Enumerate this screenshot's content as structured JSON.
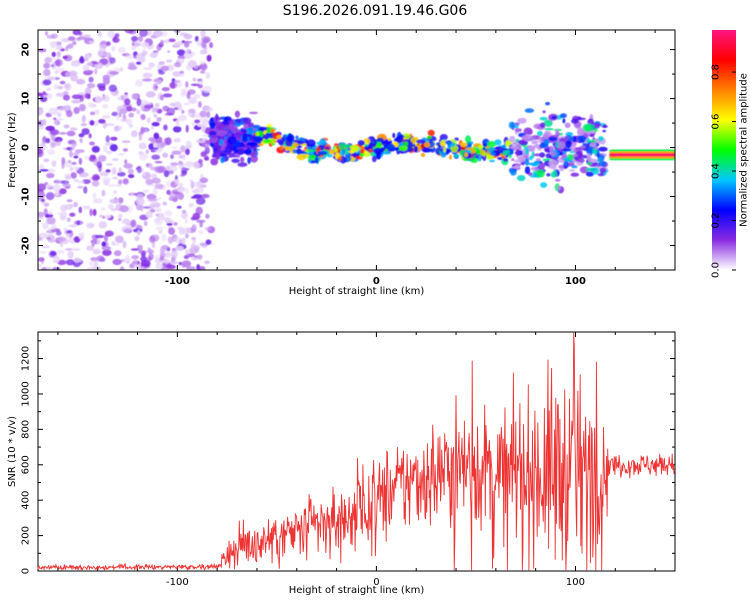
{
  "title": "S196.2026.091.19.46.G06",
  "chart_data": [
    {
      "type": "heatmap",
      "title": "S196.2026.091.19.46.G06",
      "xlabel": "Height of straight line (km)",
      "ylabel": "Frequency (Hz)",
      "xlim": [
        -170,
        150
      ],
      "ylim": [
        -25,
        24
      ],
      "xticks": [
        -100,
        0,
        100
      ],
      "yticks": [
        -20,
        -10,
        0,
        10,
        20
      ],
      "grid": false,
      "colorbar": {
        "label": "Normalized spectral amplitude",
        "range": [
          0,
          0.97
        ],
        "ticks": [
          0.0,
          0.2,
          0.4,
          0.6,
          0.8
        ],
        "tick_labels": [
          "0.0",
          "0.2",
          "0.4",
          "0.6",
          "0.8"
        ],
        "colormap": [
          "#ffffff",
          "#8a2be2",
          "#0000ff",
          "#00c8ff",
          "#00ff00",
          "#ffff00",
          "#ff8000",
          "#ff0000",
          "#ff1480"
        ]
      },
      "regions": [
        {
          "name": "noise",
          "x": [
            -170,
            -83
          ],
          "freq_center": 0,
          "freq_spread": 24,
          "amplitude": [
            0.02,
            0.16
          ]
        },
        {
          "name": "onset",
          "x": [
            -83,
            -60
          ],
          "freq_center": 2,
          "freq_spread": 6,
          "amplitude": [
            0.1,
            0.35
          ]
        },
        {
          "name": "tracking",
          "x": [
            -60,
            68
          ],
          "freq_center": 0,
          "freq_spread": 3,
          "amplitude": [
            0.2,
            0.85
          ]
        },
        {
          "name": "scintillation",
          "x": [
            68,
            115
          ],
          "freq_center": 0,
          "freq_spread": 10,
          "amplitude": [
            0.05,
            0.45
          ]
        },
        {
          "name": "steady-line",
          "x": [
            117,
            150
          ],
          "freq_center": -1.5,
          "freq_spread": 0.8,
          "amplitude": [
            0.85,
            0.95
          ]
        }
      ]
    },
    {
      "type": "line",
      "xlabel": "Height of straight line (km)",
      "ylabel": "SNR (10 * v/v)",
      "xlim": [
        -170,
        150
      ],
      "ylim": [
        0,
        1350
      ],
      "xticks": [
        -100,
        0,
        100
      ],
      "yticks": [
        0,
        200,
        400,
        600,
        800,
        1000,
        1200
      ],
      "color": "#ee3333",
      "grid": false,
      "envelope": {
        "x": [
          -170,
          -80,
          -73,
          -60,
          -40,
          -20,
          -10,
          0,
          20,
          35,
          40,
          60,
          80,
          90,
          100,
          110,
          117,
          150
        ],
        "mean": [
          20,
          25,
          120,
          160,
          210,
          280,
          330,
          400,
          520,
          560,
          600,
          560,
          560,
          560,
          560,
          560,
          600,
          600
        ],
        "amplitude": [
          15,
          15,
          120,
          150,
          180,
          230,
          260,
          280,
          300,
          350,
          450,
          350,
          500,
          650,
          550,
          500,
          70,
          70
        ]
      }
    }
  ]
}
